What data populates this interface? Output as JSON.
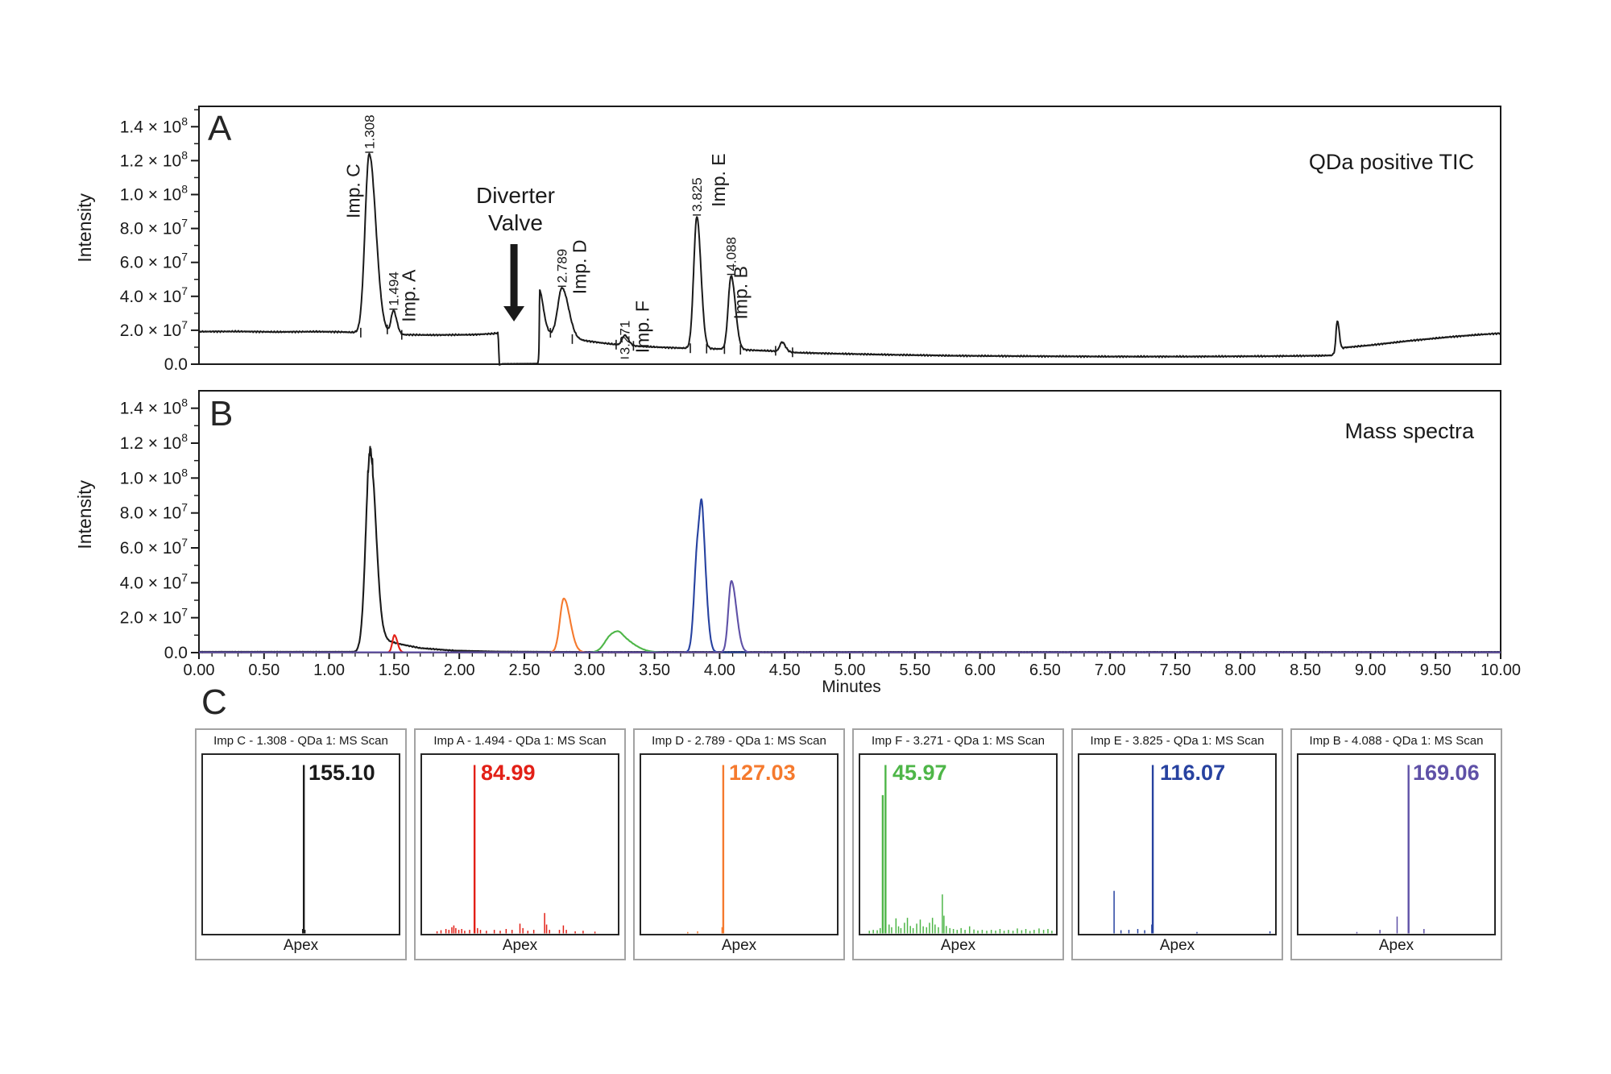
{
  "chart_data": [
    {
      "id": "tic_panel_a",
      "type": "line",
      "panel_label": "A",
      "title": "QDa positive TIC",
      "ylabel": "Intensity",
      "xlim": [
        0,
        10
      ],
      "ylim_e7": [
        0,
        15.2
      ],
      "grid": false,
      "yticks": [
        {
          "v": 0,
          "m": "0.0",
          "e": null
        },
        {
          "v": 2,
          "m": "2.0",
          "e": "7"
        },
        {
          "v": 4,
          "m": "4.0",
          "e": "7"
        },
        {
          "v": 6,
          "m": "6.0",
          "e": "7"
        },
        {
          "v": 8,
          "m": "8.0",
          "e": "7"
        },
        {
          "v": 10,
          "m": "1.0",
          "e": "8"
        },
        {
          "v": 12,
          "m": "1.2",
          "e": "8"
        },
        {
          "v": 14,
          "m": "1.4",
          "e": "8"
        }
      ],
      "annotation": {
        "line1": "Diverter",
        "line2": "Valve",
        "x_text": 2.45,
        "x_arrow": 2.42
      },
      "baseline_e7": [
        [
          0,
          1.92
        ],
        [
          0.3,
          1.93
        ],
        [
          0.6,
          1.9
        ],
        [
          0.9,
          1.92
        ],
        [
          1.1,
          1.9
        ],
        [
          1.2,
          1.87
        ],
        [
          1.45,
          1.8
        ],
        [
          1.55,
          1.74
        ],
        [
          1.8,
          1.72
        ],
        [
          2.1,
          1.74
        ],
        [
          2.26,
          1.8
        ],
        [
          2.298,
          1.84
        ],
        [
          2.308,
          -0.04
        ],
        [
          2.33,
          0.02
        ],
        [
          2.55,
          0.03
        ],
        [
          2.612,
          0.04
        ],
        [
          2.618,
          2.4
        ],
        [
          2.65,
          2.0
        ],
        [
          2.7,
          1.8
        ],
        [
          2.75,
          1.7
        ],
        [
          2.9,
          1.45
        ],
        [
          3.0,
          1.35
        ],
        [
          3.1,
          1.25
        ],
        [
          3.25,
          1.12
        ],
        [
          3.4,
          1.05
        ],
        [
          3.6,
          0.98
        ],
        [
          3.8,
          0.93
        ],
        [
          4.0,
          0.9
        ],
        [
          4.2,
          0.84
        ],
        [
          4.4,
          0.78
        ],
        [
          4.6,
          0.68
        ],
        [
          4.9,
          0.62
        ],
        [
          5.3,
          0.56
        ],
        [
          5.8,
          0.5
        ],
        [
          6.4,
          0.47
        ],
        [
          7.0,
          0.45
        ],
        [
          7.6,
          0.45
        ],
        [
          8.2,
          0.47
        ],
        [
          8.6,
          0.5
        ],
        [
          8.7,
          0.52
        ],
        [
          8.8,
          0.98
        ],
        [
          9.0,
          1.12
        ],
        [
          9.3,
          1.38
        ],
        [
          9.6,
          1.6
        ],
        [
          9.85,
          1.75
        ],
        [
          10,
          1.82
        ]
      ],
      "peaks": [
        {
          "rt": 1.308,
          "apex_e7": 12.4,
          "sigma": 0.032,
          "tail": 1.6,
          "label": "1.308",
          "name": "Imp. C",
          "name_dx": -12,
          "name_drop": 80
        },
        {
          "rt": 1.494,
          "apex_e7": 3.15,
          "sigma": 0.018,
          "tail": 1.4,
          "label": "1.494",
          "name": "Imp. A",
          "name_dx": 27,
          "name_drop": 14
        },
        {
          "rt": 2.789,
          "apex_e7": 4.5,
          "sigma": 0.032,
          "tail": 1.6,
          "label": "2.789",
          "name": "Imp. D",
          "name_dx": 30,
          "name_drop": 8
        },
        {
          "rt": 3.271,
          "apex_e7": 1.7,
          "sigma": 0.02,
          "tail": 1.4,
          "label": "3.271",
          "name": "Imp. F",
          "name_dx": 30,
          "name_drop": 22,
          "rt_drop": 24
        },
        {
          "rt": 3.825,
          "apex_e7": 8.7,
          "sigma": 0.024,
          "tail": 1.3,
          "label": "3.825",
          "name": "Imp. E",
          "name_dx": 35,
          "name_drop": -12
        },
        {
          "rt": 4.088,
          "apex_e7": 5.2,
          "sigma": 0.022,
          "tail": 1.5,
          "label": "4.088",
          "name": "Imp. B",
          "name_dx": 20,
          "name_drop": 54
        }
      ],
      "unlabeled_features": [
        {
          "rt": 2.618,
          "apex_e7": 4.35,
          "sigma": 0.005,
          "tail": 6
        },
        {
          "rt": 4.48,
          "apex_e7": 1.3,
          "sigma": 0.018,
          "tail": 1.4
        },
        {
          "rt": 8.745,
          "apex_e7": 2.55,
          "sigma": 0.01,
          "tail": 1.5
        }
      ],
      "integration_marks_e7": [
        [
          1.243,
          1.86
        ],
        [
          1.447,
          2.05
        ],
        [
          1.558,
          1.73
        ],
        [
          2.7,
          1.85
        ],
        [
          2.868,
          1.48
        ],
        [
          3.205,
          1.15
        ],
        [
          3.338,
          1.08
        ],
        [
          3.775,
          0.94
        ],
        [
          3.9,
          0.92
        ],
        [
          4.037,
          0.89
        ],
        [
          4.16,
          0.85
        ],
        [
          4.43,
          0.79
        ],
        [
          4.56,
          0.7
        ]
      ]
    },
    {
      "id": "xic_panel_b",
      "type": "line",
      "panel_label": "B",
      "title": "Mass spectra",
      "ylabel": "Intensity",
      "xlabel": "Minutes",
      "xlim": [
        0,
        10
      ],
      "ylim_e7": [
        0,
        15.0
      ],
      "grid": false,
      "yticks": [
        {
          "v": 0,
          "m": "0.0",
          "e": null
        },
        {
          "v": 2,
          "m": "2.0",
          "e": "7"
        },
        {
          "v": 4,
          "m": "4.0",
          "e": "7"
        },
        {
          "v": 6,
          "m": "6.0",
          "e": "7"
        },
        {
          "v": 8,
          "m": "8.0",
          "e": "7"
        },
        {
          "v": 10,
          "m": "1.0",
          "e": "8"
        },
        {
          "v": 12,
          "m": "1.2",
          "e": "8"
        },
        {
          "v": 14,
          "m": "1.4",
          "e": "8"
        }
      ],
      "xticks": [
        {
          "v": 0,
          "label": "0.00"
        },
        {
          "v": 0.5,
          "label": "0.50"
        },
        {
          "v": 1,
          "label": "1.00"
        },
        {
          "v": 1.5,
          "label": "1.50"
        },
        {
          "v": 2,
          "label": "2.00"
        },
        {
          "v": 2.5,
          "label": "2.50"
        },
        {
          "v": 3,
          "label": "3.00"
        },
        {
          "v": 3.5,
          "label": "3.50"
        },
        {
          "v": 4,
          "label": "4.00"
        },
        {
          "v": 4.5,
          "label": "4.50"
        },
        {
          "v": 5,
          "label": "5.00"
        },
        {
          "v": 5.5,
          "label": "5.50"
        },
        {
          "v": 6,
          "label": "6.00"
        },
        {
          "v": 6.5,
          "label": "6.50"
        },
        {
          "v": 7,
          "label": "7.00"
        },
        {
          "v": 7.5,
          "label": "7.50"
        },
        {
          "v": 8,
          "label": "8.00"
        },
        {
          "v": 8.5,
          "label": "8.50"
        },
        {
          "v": 9,
          "label": "9.00"
        },
        {
          "v": 9.5,
          "label": "9.50"
        },
        {
          "v": 10,
          "label": "10.00"
        }
      ],
      "series": [
        {
          "name": "Imp C XIC",
          "color": "#1a1a1a",
          "apex_noise": true,
          "baseline_e7": [
            [
              0,
              0.05
            ],
            [
              1.2,
              0.05
            ],
            [
              1.43,
              0.7
            ],
            [
              1.55,
              0.48
            ],
            [
              1.7,
              0.26
            ],
            [
              1.95,
              0.12
            ],
            [
              2.3,
              0.06
            ],
            [
              3.0,
              0.04
            ],
            [
              10,
              0.04
            ]
          ],
          "peaks": [
            {
              "rt": 1.315,
              "apex_e7": 11.5,
              "sigma": 0.033,
              "tail": 1.35
            }
          ]
        },
        {
          "name": "Imp A XIC",
          "color": "#e22017",
          "peaks": [
            {
              "rt": 1.502,
              "apex_e7": 1.0,
              "sigma": 0.016,
              "tail": 1.4
            }
          ]
        },
        {
          "name": "Imp D XIC",
          "color": "#f57a2e",
          "peaks": [
            {
              "rt": 2.803,
              "apex_e7": 3.1,
              "sigma": 0.03,
              "tail": 1.6
            }
          ]
        },
        {
          "name": "Imp F XIC",
          "color": "#4eb648",
          "peaks": [
            {
              "rt": 3.165,
              "apex_e7": 0.9,
              "sigma": 0.05,
              "tail": 1.2
            },
            {
              "rt": 3.245,
              "apex_e7": 0.75,
              "sigma": 0.045,
              "tail": 2.2
            }
          ]
        },
        {
          "name": "Imp E XIC",
          "color": "#2742a0",
          "peaks": [
            {
              "rt": 3.832,
              "apex_e7": 6.2,
              "sigma": 0.026,
              "tail": 1.25
            },
            {
              "rt": 3.868,
              "apex_e7": 5.0,
              "sigma": 0.018,
              "tail": 1.8
            }
          ]
        },
        {
          "name": "Imp B XIC",
          "color": "#5f51a7",
          "peaks": [
            {
              "rt": 4.09,
              "apex_e7": 4.1,
              "sigma": 0.023,
              "tail": 1.7
            }
          ]
        }
      ]
    },
    {
      "id": "ms_spectra_panel_c",
      "type": "stick",
      "panel_label": "C",
      "apex_label": "Apex",
      "boxes": [
        {
          "title": "Imp C - 1.308 - QDa 1: MS Scan",
          "mz_label": "155.10",
          "color": "#1a1a1a",
          "sticks": [
            [
              0.515,
              0.95
            ],
            [
              0.509,
              0.025
            ],
            [
              0.521,
              0.02
            ]
          ]
        },
        {
          "title": "Imp A - 1.494 - QDa 1: MS Scan",
          "mz_label": "84.99",
          "color": "#e22017",
          "sticks": [
            [
              0.27,
              0.95
            ],
            [
              0.08,
              0.012
            ],
            [
              0.1,
              0.018
            ],
            [
              0.125,
              0.025
            ],
            [
              0.14,
              0.02
            ],
            [
              0.155,
              0.035
            ],
            [
              0.165,
              0.045
            ],
            [
              0.175,
              0.03
            ],
            [
              0.19,
              0.02
            ],
            [
              0.205,
              0.025
            ],
            [
              0.22,
              0.015
            ],
            [
              0.245,
              0.02
            ],
            [
              0.285,
              0.03
            ],
            [
              0.3,
              0.02
            ],
            [
              0.33,
              0.015
            ],
            [
              0.37,
              0.02
            ],
            [
              0.4,
              0.015
            ],
            [
              0.43,
              0.025
            ],
            [
              0.46,
              0.02
            ],
            [
              0.5,
              0.055
            ],
            [
              0.515,
              0.03
            ],
            [
              0.54,
              0.015
            ],
            [
              0.57,
              0.02
            ],
            [
              0.625,
              0.115
            ],
            [
              0.635,
              0.05
            ],
            [
              0.65,
              0.02
            ],
            [
              0.7,
              0.02
            ],
            [
              0.72,
              0.045
            ],
            [
              0.735,
              0.02
            ],
            [
              0.78,
              0.012
            ],
            [
              0.82,
              0.015
            ],
            [
              0.88,
              0.01
            ]
          ]
        },
        {
          "title": "Imp D - 2.789 - QDa 1: MS Scan",
          "mz_label": "127.03",
          "color": "#f57a2e",
          "sticks": [
            [
              0.42,
              0.95
            ],
            [
              0.414,
              0.035
            ],
            [
              0.29,
              0.012
            ],
            [
              0.24,
              0.008
            ]
          ]
        },
        {
          "title": "Imp F - 3.271 - QDa 1: MS Scan",
          "mz_label": "45.97",
          "color": "#4eb648",
          "sticks": [
            [
              0.132,
              0.95
            ],
            [
              0.118,
              0.78
            ],
            [
              0.05,
              0.015
            ],
            [
              0.07,
              0.02
            ],
            [
              0.09,
              0.018
            ],
            [
              0.105,
              0.03
            ],
            [
              0.15,
              0.05
            ],
            [
              0.163,
              0.035
            ],
            [
              0.185,
              0.085
            ],
            [
              0.198,
              0.04
            ],
            [
              0.21,
              0.03
            ],
            [
              0.228,
              0.06
            ],
            [
              0.243,
              0.088
            ],
            [
              0.258,
              0.042
            ],
            [
              0.272,
              0.03
            ],
            [
              0.29,
              0.055
            ],
            [
              0.308,
              0.078
            ],
            [
              0.323,
              0.04
            ],
            [
              0.34,
              0.035
            ],
            [
              0.355,
              0.06
            ],
            [
              0.37,
              0.088
            ],
            [
              0.383,
              0.05
            ],
            [
              0.4,
              0.035
            ],
            [
              0.42,
              0.22
            ],
            [
              0.428,
              0.1
            ],
            [
              0.44,
              0.042
            ],
            [
              0.458,
              0.03
            ],
            [
              0.476,
              0.025
            ],
            [
              0.495,
              0.02
            ],
            [
              0.515,
              0.03
            ],
            [
              0.535,
              0.02
            ],
            [
              0.558,
              0.04
            ],
            [
              0.58,
              0.022
            ],
            [
              0.6,
              0.016
            ],
            [
              0.622,
              0.02
            ],
            [
              0.645,
              0.015
            ],
            [
              0.668,
              0.02
            ],
            [
              0.69,
              0.016
            ],
            [
              0.712,
              0.025
            ],
            [
              0.733,
              0.015
            ],
            [
              0.755,
              0.02
            ],
            [
              0.778,
              0.015
            ],
            [
              0.8,
              0.028
            ],
            [
              0.822,
              0.018
            ],
            [
              0.843,
              0.025
            ],
            [
              0.864,
              0.014
            ],
            [
              0.885,
              0.02
            ],
            [
              0.91,
              0.028
            ],
            [
              0.933,
              0.02
            ],
            [
              0.955,
              0.025
            ],
            [
              0.975,
              0.015
            ]
          ]
        },
        {
          "title": "Imp E - 3.825 - QDa 1: MS Scan",
          "mz_label": "116.07",
          "color": "#2742a0",
          "sticks": [
            [
              0.376,
              0.95
            ],
            [
              0.18,
              0.24
            ],
            [
              0.215,
              0.018
            ],
            [
              0.255,
              0.02
            ],
            [
              0.3,
              0.025
            ],
            [
              0.335,
              0.018
            ],
            [
              0.371,
              0.05
            ],
            [
              0.6,
              0.008
            ],
            [
              0.97,
              0.012
            ]
          ]
        },
        {
          "title": "Imp B - 4.088 - QDa 1: MS Scan",
          "mz_label": "169.06",
          "color": "#5f51a7",
          "sticks": [
            [
              0.562,
              0.95
            ],
            [
              0.504,
              0.095
            ],
            [
              0.417,
              0.02
            ],
            [
              0.64,
              0.025
            ],
            [
              0.3,
              0.008
            ]
          ]
        }
      ]
    }
  ]
}
